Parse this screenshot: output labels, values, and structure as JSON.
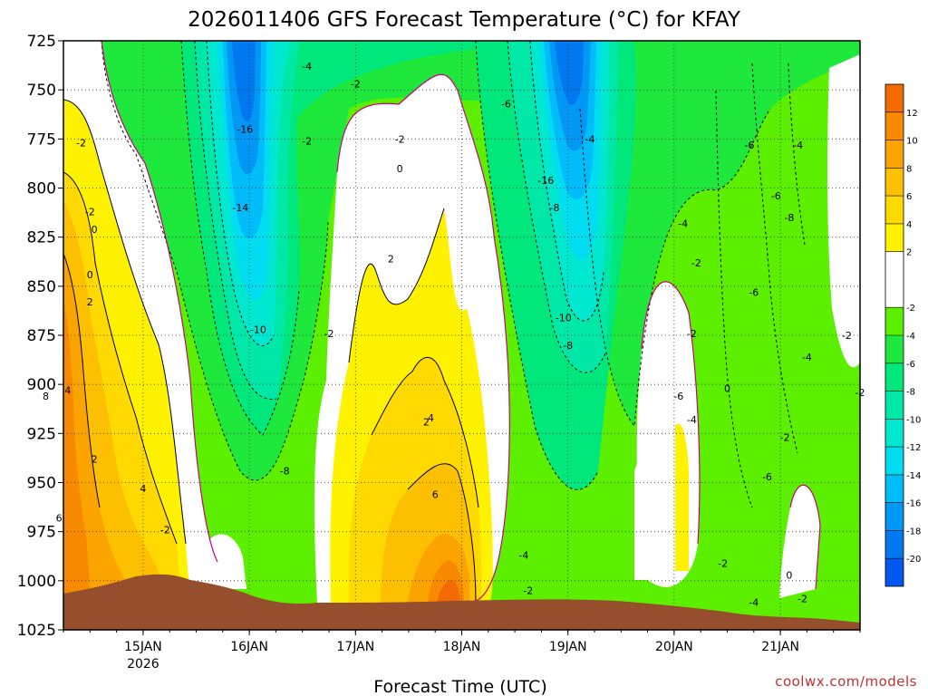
{
  "chart_data": {
    "type": "heatmap",
    "title": "2026011406 GFS Forecast Temperature (°C) for KFAY",
    "xlabel": "Forecast Time (UTC)",
    "x_ticks": [
      "15JAN",
      "16JAN",
      "17JAN",
      "18JAN",
      "19JAN",
      "20JAN",
      "21JAN"
    ],
    "x_sublabel": "2026",
    "y_ticks": [
      "725",
      "750",
      "775",
      "800",
      "825",
      "850",
      "875",
      "900",
      "925",
      "950",
      "975",
      "1000",
      "1025"
    ],
    "ylim": [
      1025,
      725
    ],
    "grid": true,
    "colorbar": {
      "placement": "right",
      "ticks": [
        "12",
        "10",
        "8",
        "6",
        "4",
        "2",
        "-2",
        "-4",
        "-6",
        "-8",
        "-10",
        "-12",
        "-14",
        "-16",
        "-18",
        "-20"
      ],
      "bins": [
        {
          "low": 12,
          "high": 14,
          "color": "#f26a00"
        },
        {
          "low": 10,
          "high": 12,
          "color": "#f78a00"
        },
        {
          "low": 8,
          "high": 10,
          "color": "#fba400"
        },
        {
          "low": 6,
          "high": 8,
          "color": "#fdc000"
        },
        {
          "low": 4,
          "high": 6,
          "color": "#ffd900"
        },
        {
          "low": 2,
          "high": 4,
          "color": "#fff200"
        },
        {
          "low": -2,
          "high": 2,
          "color": "#ffffff"
        },
        {
          "low": -4,
          "high": -2,
          "color": "#5cf000"
        },
        {
          "low": -6,
          "high": -4,
          "color": "#1ee83c"
        },
        {
          "low": -8,
          "high": -6,
          "color": "#00e87c"
        },
        {
          "low": -10,
          "high": -8,
          "color": "#00e8a8"
        },
        {
          "low": -12,
          "high": -10,
          "color": "#00e8d0"
        },
        {
          "low": -14,
          "high": -12,
          "color": "#00dcf0"
        },
        {
          "low": -16,
          "high": -14,
          "color": "#00bcf8"
        },
        {
          "low": -18,
          "high": -16,
          "color": "#0098f4"
        },
        {
          "low": -20,
          "high": -18,
          "color": "#0078f0"
        },
        {
          "low": -22,
          "high": -20,
          "color": "#0058f0"
        }
      ]
    },
    "contour_labels": [
      {
        "text": "-2",
        "time": "14/10",
        "p": 777
      },
      {
        "text": "-2",
        "time": "14/12",
        "p": 812
      },
      {
        "text": "0",
        "time": "14/13",
        "p": 821
      },
      {
        "text": "0",
        "time": "14/12",
        "p": 844
      },
      {
        "text": "2",
        "time": "14/12",
        "p": 858
      },
      {
        "text": "4",
        "time": "14/07",
        "p": 903
      },
      {
        "text": "8",
        "time": "14/02",
        "p": 906
      },
      {
        "text": "2",
        "time": "14/13",
        "p": 938
      },
      {
        "text": "6",
        "time": "14/05",
        "p": 968
      },
      {
        "text": "4",
        "time": "15/00",
        "p": 953
      },
      {
        "text": "-2",
        "time": "15/05",
        "p": 974
      },
      {
        "text": "-16",
        "time": "15/23",
        "p": 770
      },
      {
        "text": "-14",
        "time": "15/22",
        "p": 810
      },
      {
        "text": "-10",
        "time": "16/02",
        "p": 872
      },
      {
        "text": "-8",
        "time": "16/08",
        "p": 944
      },
      {
        "text": "-4",
        "time": "16/13",
        "p": 738
      },
      {
        "text": "-2",
        "time": "16/13",
        "p": 776
      },
      {
        "text": "-2",
        "time": "16/18",
        "p": 874
      },
      {
        "text": "-2",
        "time": "17/00",
        "p": 747
      },
      {
        "text": "-2",
        "time": "17/10",
        "p": 775
      },
      {
        "text": "0",
        "time": "17/10",
        "p": 790
      },
      {
        "text": "2",
        "time": "17/08",
        "p": 836
      },
      {
        "text": "2",
        "time": "17/16",
        "p": 919
      },
      {
        "text": "4",
        "time": "17/17",
        "p": 917
      },
      {
        "text": "6",
        "time": "17/18",
        "p": 956
      },
      {
        "text": "-6",
        "time": "18/10",
        "p": 757
      },
      {
        "text": "-16",
        "time": "18/19",
        "p": 796
      },
      {
        "text": "-8",
        "time": "18/21",
        "p": 810
      },
      {
        "text": "-10",
        "time": "18/23",
        "p": 866
      },
      {
        "text": "-8",
        "time": "19/00",
        "p": 880
      },
      {
        "text": "-4",
        "time": "18/14",
        "p": 987
      },
      {
        "text": "-2",
        "time": "18/15",
        "p": 1005
      },
      {
        "text": "-4",
        "time": "19/05",
        "p": 775
      },
      {
        "text": "-4",
        "time": "20/02",
        "p": 818
      },
      {
        "text": "-2",
        "time": "20/05",
        "p": 838
      },
      {
        "text": "-2",
        "time": "20/04",
        "p": 874
      },
      {
        "text": "-6",
        "time": "20/01",
        "p": 906
      },
      {
        "text": "-4",
        "time": "20/04",
        "p": 918
      },
      {
        "text": "0",
        "time": "20/12",
        "p": 902
      },
      {
        "text": "-2",
        "time": "20/11",
        "p": 991
      },
      {
        "text": "-4",
        "time": "20/18",
        "p": 1011
      },
      {
        "text": "-6",
        "time": "20/17",
        "p": 778
      },
      {
        "text": "-6",
        "time": "20/23",
        "p": 804
      },
      {
        "text": "-8",
        "time": "21/02",
        "p": 815
      },
      {
        "text": "-6",
        "time": "20/18",
        "p": 853
      },
      {
        "text": "-4",
        "time": "21/04",
        "p": 778
      },
      {
        "text": "-4",
        "time": "21/06",
        "p": 886
      },
      {
        "text": "-6",
        "time": "20/21",
        "p": 947
      },
      {
        "text": "-2",
        "time": "21/01",
        "p": 927
      },
      {
        "text": "-2",
        "time": "21/15",
        "p": 875
      },
      {
        "text": "-2",
        "time": "21/18",
        "p": 904
      },
      {
        "text": "0",
        "time": "21/02",
        "p": 997
      },
      {
        "text": "-2",
        "time": "21/05",
        "p": 1009
      }
    ],
    "credit": "coolwx.com/models"
  }
}
